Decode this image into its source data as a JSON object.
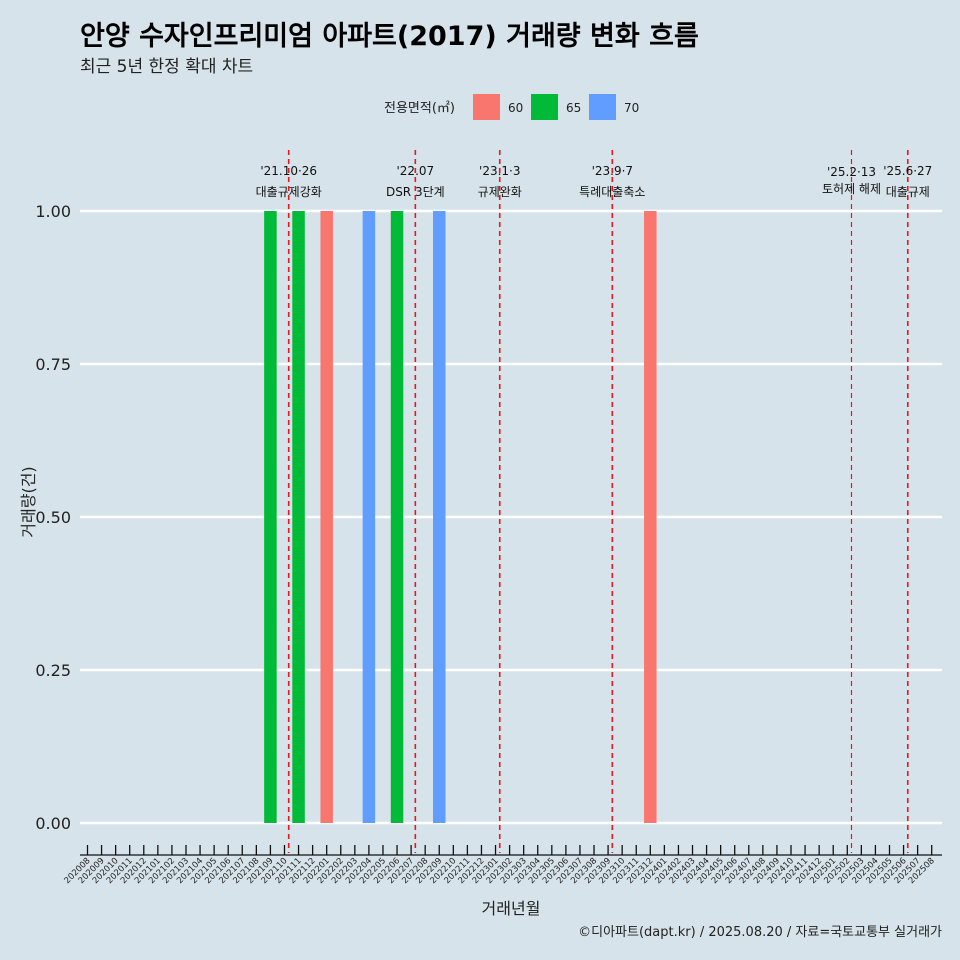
{
  "title": "안양 수자인프리미엄 아파트(2017) 거래량 변화 흐름",
  "subtitle": "최근 5년 한정 확대 차트",
  "caption": "©디아파트(dapt.kr) / 2025.08.20 / 자료=국토교통부 실거래가",
  "chart_data": {
    "type": "bar",
    "xlabel": "거래년월",
    "ylabel": "거래량(건)",
    "ylim": [
      0,
      1
    ],
    "yticks": [
      "0.00",
      "0.25",
      "0.50",
      "0.75",
      "1.00"
    ],
    "legend": {
      "title": "전용면적(㎡)",
      "position": "top"
    },
    "categories": [
      "202008",
      "202009",
      "202010",
      "202011",
      "202012",
      "202101",
      "202102",
      "202103",
      "202104",
      "202105",
      "202106",
      "202107",
      "202108",
      "202109",
      "202110",
      "202111",
      "202112",
      "202201",
      "202202",
      "202203",
      "202204",
      "202205",
      "202206",
      "202207",
      "202208",
      "202209",
      "202210",
      "202211",
      "202212",
      "202301",
      "202302",
      "202303",
      "202304",
      "202305",
      "202306",
      "202307",
      "202308",
      "202309",
      "202310",
      "202311",
      "202312",
      "202401",
      "202402",
      "202403",
      "202404",
      "202405",
      "202406",
      "202407",
      "202408",
      "202409",
      "202410",
      "202411",
      "202412",
      "202501",
      "202502",
      "202503",
      "202504",
      "202505",
      "202506",
      "202507",
      "202508"
    ],
    "series": [
      {
        "name": "60",
        "color": "#f8766d",
        "points": [
          {
            "x": "202201",
            "y": 1
          },
          {
            "x": "202312",
            "y": 1
          }
        ]
      },
      {
        "name": "65",
        "color": "#00ba38",
        "points": [
          {
            "x": "202109",
            "y": 1
          },
          {
            "x": "202111",
            "y": 1
          },
          {
            "x": "202206",
            "y": 1
          }
        ]
      },
      {
        "name": "70",
        "color": "#619cff",
        "points": [
          {
            "x": "202204",
            "y": 1
          },
          {
            "x": "202209",
            "y": 1
          }
        ]
      }
    ],
    "annotations": [
      {
        "x": 14.3,
        "line1": "'21.10·26",
        "line2": "대출규제강화",
        "small": false
      },
      {
        "x": 23.3,
        "line1": "'22.07",
        "line2": "DSR 3단계",
        "small": false
      },
      {
        "x": 29.3,
        "line1": "'23.1·3",
        "line2": "규제완화",
        "small": false
      },
      {
        "x": 37.3,
        "line1": "'23.9·7",
        "line2": "특례대출축소",
        "small": false
      },
      {
        "x": 54.3,
        "line1": "'25.2·13",
        "line2": "토허제 해제",
        "small": true
      },
      {
        "x": 58.3,
        "line1": "'25.6·27",
        "line2": "대출규제",
        "small": false
      }
    ]
  }
}
